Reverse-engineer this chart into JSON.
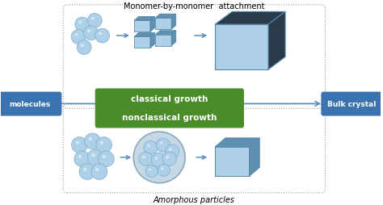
{
  "bg_color": "#ffffff",
  "fig_width": 4.74,
  "fig_height": 2.55,
  "dpi": 100,
  "title_top": "Monomer-by-monomer  attachment",
  "title_bottom": "Amorphous particles",
  "label_molecules": "molecules",
  "label_bulk": "Bulk crystal",
  "label_classical": "classical growth",
  "label_nonclassical": "nonclassical growth",
  "green_bg": "#4a8c2a",
  "green_text": "#ffffff",
  "blue_btn_bg": "#3b73b0",
  "blue_btn_text": "#ffffff",
  "arrow_color": "#5b8fc4",
  "sphere_color": "#aed0e8",
  "sphere_edge": "#7aacc8",
  "dashed_border": "#999999",
  "cube_face_front": "#aed0e8",
  "cube_face_top": "#2a3a4a",
  "cube_face_side": "#2a3a4a",
  "cube_face_front_small": "#aed0e8",
  "cube_face_top_small": "#6090b0",
  "cube_face_side_small": "#6090b0",
  "bottom_cube_front": "#aed0e8",
  "bottom_cube_top": "#6090b0",
  "bottom_cube_side": "#6090b0"
}
